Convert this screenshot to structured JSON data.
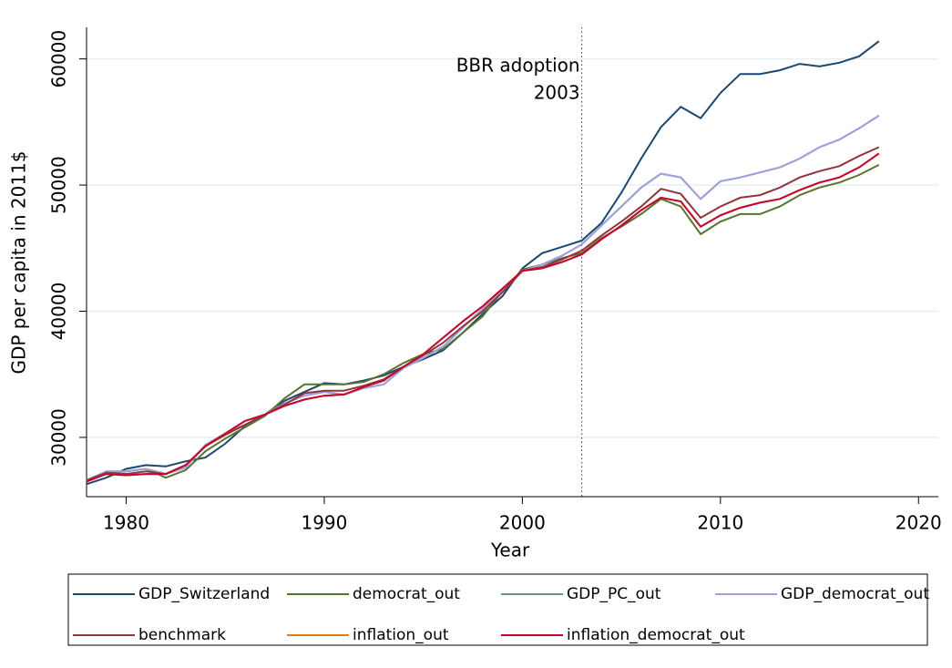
{
  "chart_data": {
    "type": "line",
    "x_label": "Year",
    "y_label": "GDP per capita in 2011$",
    "annotation": [
      "BBR adoption",
      "2003"
    ],
    "vline": 2003,
    "x": [
      1978,
      1979,
      1980,
      1981,
      1982,
      1983,
      1984,
      1985,
      1986,
      1987,
      1988,
      1989,
      1990,
      1991,
      1992,
      1993,
      1994,
      1995,
      1996,
      1997,
      1998,
      1999,
      2000,
      2001,
      2002,
      2003,
      2004,
      2005,
      2006,
      2007,
      2008,
      2009,
      2010,
      2011,
      2012,
      2013,
      2014,
      2015,
      2016,
      2017,
      2018
    ],
    "xlim": [
      1978,
      2021
    ],
    "xticks": [
      1980,
      1990,
      2000,
      2010,
      2020
    ],
    "ylim": [
      25300,
      62500
    ],
    "yticks": [
      30000,
      40000,
      50000,
      60000
    ],
    "grid": true,
    "series": [
      {
        "name": "GDP_Switzerland",
        "color": "#1a476f",
        "values": [
          26300,
          26800,
          27500,
          27800,
          27700,
          28100,
          28400,
          29500,
          30900,
          31800,
          32900,
          33600,
          34300,
          34200,
          34500,
          34900,
          35600,
          36200,
          36900,
          38300,
          39800,
          41200,
          43400,
          44600,
          45100,
          45600,
          47000,
          49400,
          52100,
          54600,
          56200,
          55300,
          57300,
          58800,
          58800,
          59100,
          59600,
          59400,
          59700,
          60200,
          61400
        ]
      },
      {
        "name": "democrat_out",
        "color": "#55752f",
        "values": [
          26500,
          27200,
          27300,
          27500,
          26800,
          27400,
          28900,
          29900,
          30800,
          31700,
          33100,
          34200,
          34200,
          34200,
          34400,
          35000,
          35900,
          36600,
          37000,
          38300,
          39600,
          41600,
          43300,
          43700,
          44200,
          44600,
          45800,
          46700,
          47700,
          48900,
          48300,
          46100,
          47100,
          47700,
          47700,
          48300,
          49200,
          49800,
          50200,
          50800,
          51600
        ]
      },
      {
        "name": "GDP_PC_out",
        "color": "#6e8e84",
        "values": [
          26600,
          27300,
          27300,
          27500,
          27100,
          27600,
          29400,
          30300,
          31000,
          31800,
          32700,
          33300,
          33600,
          33400,
          33900,
          34200,
          35500,
          36300,
          37200,
          38700,
          40200,
          41600,
          43200,
          43700,
          44400,
          45300,
          46800,
          48300,
          49800,
          50900,
          50600,
          48900,
          50300,
          50600,
          51000,
          51400,
          52100,
          53000,
          53600,
          54500,
          55500
        ]
      },
      {
        "name": "GDP_democrat_out",
        "color": "#a0a0e0",
        "values": [
          26600,
          27300,
          27300,
          27500,
          27100,
          27600,
          29400,
          30300,
          31000,
          31800,
          32700,
          33300,
          33600,
          33400,
          33900,
          34200,
          35500,
          36300,
          37200,
          38700,
          40200,
          41600,
          43200,
          43700,
          44400,
          45300,
          46800,
          48300,
          49800,
          50900,
          50600,
          48900,
          50300,
          50600,
          51000,
          51400,
          52100,
          53000,
          53600,
          54500,
          55500
        ]
      },
      {
        "name": "benchmark",
        "color": "#90353b",
        "values": [
          26600,
          27200,
          27100,
          27300,
          27100,
          27800,
          29300,
          30200,
          31000,
          31800,
          32600,
          33500,
          33700,
          33700,
          34100,
          34600,
          35600,
          36500,
          37500,
          38800,
          40000,
          41500,
          43200,
          43500,
          44100,
          44800,
          46000,
          47100,
          48300,
          49700,
          49300,
          47400,
          48300,
          49000,
          49200,
          49800,
          50600,
          51100,
          51500,
          52300,
          53000
        ]
      },
      {
        "name": "inflation_out",
        "color": "#e37e00",
        "values": [
          26500,
          27100,
          27000,
          27100,
          27100,
          27800,
          29300,
          30300,
          31300,
          31800,
          32500,
          33000,
          33300,
          33400,
          34000,
          34500,
          35600,
          36600,
          37900,
          39200,
          40400,
          41800,
          43200,
          43400,
          43900,
          44500,
          45700,
          46800,
          48000,
          49000,
          48700,
          46700,
          47600,
          48200,
          48600,
          48900,
          49600,
          50200,
          50600,
          51400,
          52500
        ]
      },
      {
        "name": "inflation_democrat_out",
        "color": "#c10534",
        "values": [
          26500,
          27100,
          27000,
          27100,
          27100,
          27800,
          29300,
          30300,
          31300,
          31800,
          32500,
          33000,
          33300,
          33400,
          34000,
          34500,
          35600,
          36600,
          37900,
          39200,
          40400,
          41800,
          43200,
          43400,
          43900,
          44500,
          45700,
          46800,
          48000,
          49000,
          48700,
          46700,
          47600,
          48200,
          48600,
          48900,
          49600,
          50200,
          50600,
          51400,
          52500
        ]
      }
    ]
  }
}
